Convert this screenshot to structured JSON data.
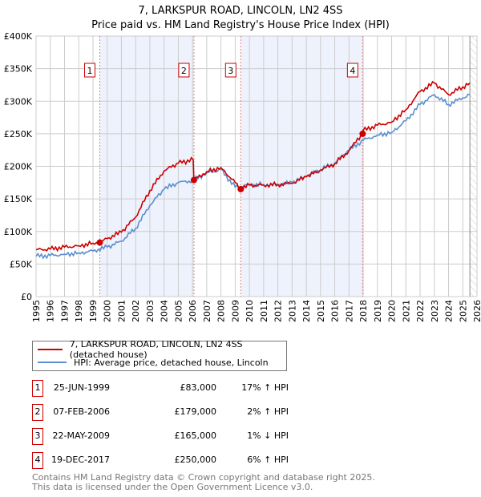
{
  "chart_data": {
    "type": "line",
    "title": "7, LARKSPUR ROAD, LINCOLN, LN2 4SS",
    "subtitle": "Price paid vs. HM Land Registry's House Price Index (HPI)",
    "xlim": [
      1995,
      2026
    ],
    "ylim": [
      0,
      400000
    ],
    "y_ticks": [
      {
        "v": 0,
        "l": "£0"
      },
      {
        "v": 50000,
        "l": "£50K"
      },
      {
        "v": 100000,
        "l": "£100K"
      },
      {
        "v": 150000,
        "l": "£150K"
      },
      {
        "v": 200000,
        "l": "£200K"
      },
      {
        "v": 250000,
        "l": "£250K"
      },
      {
        "v": 300000,
        "l": "£300K"
      },
      {
        "v": 350000,
        "l": "£350K"
      },
      {
        "v": 400000,
        "l": "£400K"
      }
    ],
    "x_ticks": [
      "1995",
      "1996",
      "1997",
      "1998",
      "1999",
      "2000",
      "2001",
      "2002",
      "2003",
      "2004",
      "2005",
      "2006",
      "2007",
      "2008",
      "2009",
      "2010",
      "2011",
      "2012",
      "2013",
      "2014",
      "2015",
      "2016",
      "2017",
      "2018",
      "2019",
      "2020",
      "2021",
      "2022",
      "2023",
      "2024",
      "2025",
      "2026"
    ],
    "grid": true,
    "series": [
      {
        "name": "7, LARKSPUR ROAD, LINCOLN, LN2 4SS (detached house)",
        "color": "#cc0000",
        "x": [
          1995,
          1996,
          1997,
          1998,
          1999,
          1999.48,
          2000,
          2001,
          2002,
          2003,
          2004,
          2005,
          2006.05,
          2006.1,
          2007,
          2008,
          2009,
          2009.39,
          2010,
          2011,
          2012,
          2013,
          2014,
          2015,
          2016,
          2017,
          2017.96,
          2018,
          2019,
          2020,
          2021,
          2022,
          2023,
          2024,
          2025,
          2025.5
        ],
        "y": [
          72000,
          73000,
          76000,
          78000,
          82000,
          83000,
          89000,
          99000,
          122000,
          163000,
          193000,
          205000,
          210000,
          179000,
          192000,
          198000,
          175000,
          165000,
          171000,
          171000,
          172000,
          174000,
          184000,
          194000,
          204000,
          224000,
          250000,
          255000,
          263000,
          268000,
          287000,
          315000,
          328000,
          310000,
          322000,
          328000
        ]
      },
      {
        "name": "HPI: Average price, detached house, Lincoln",
        "color": "#5b8fd0",
        "x": [
          1995,
          1996,
          1997,
          1998,
          1999,
          2000,
          2001,
          2002,
          2003,
          2004,
          2005,
          2006,
          2007,
          2008,
          2009,
          2010,
          2011,
          2012,
          2013,
          2014,
          2015,
          2016,
          2017,
          2018,
          2019,
          2020,
          2021,
          2022,
          2023,
          2024,
          2025,
          2025.5
        ],
        "y": [
          62000,
          63000,
          65000,
          67000,
          70000,
          76000,
          85000,
          105000,
          140000,
          165000,
          175000,
          178000,
          190000,
          195000,
          168000,
          172000,
          172000,
          172000,
          175000,
          185000,
          195000,
          205000,
          225000,
          240000,
          248000,
          252000,
          270000,
          295000,
          310000,
          295000,
          305000,
          310000
        ]
      }
    ],
    "sales": [
      {
        "n": "1",
        "x": 1999.48,
        "y": 83000
      },
      {
        "n": "2",
        "x": 2006.1,
        "y": 179000
      },
      {
        "n": "3",
        "x": 2009.39,
        "y": 165000
      },
      {
        "n": "4",
        "x": 2017.96,
        "y": 250000
      }
    ],
    "shaded": [
      [
        1999.48,
        2006.1
      ],
      [
        2009.39,
        2017.96
      ]
    ],
    "hatch_from": 2025.5,
    "legend": "below"
  },
  "legend": {
    "red": "7, LARKSPUR ROAD, LINCOLN, LN2 4SS (detached house)",
    "blue": "HPI: Average price, detached house, Lincoln"
  },
  "table": [
    {
      "n": "1",
      "date": "25-JUN-1999",
      "price": "£83,000",
      "hpi": "17% ↑ HPI"
    },
    {
      "n": "2",
      "date": "07-FEB-2006",
      "price": "£179,000",
      "hpi": "2% ↑ HPI"
    },
    {
      "n": "3",
      "date": "22-MAY-2009",
      "price": "£165,000",
      "hpi": "1% ↓ HPI"
    },
    {
      "n": "4",
      "date": "19-DEC-2017",
      "price": "£250,000",
      "hpi": "6% ↑ HPI"
    }
  ],
  "footer": {
    "line1": "Contains HM Land Registry data © Crown copyright and database right 2025.",
    "line2": "This data is licensed under the Open Government Licence v3.0."
  }
}
